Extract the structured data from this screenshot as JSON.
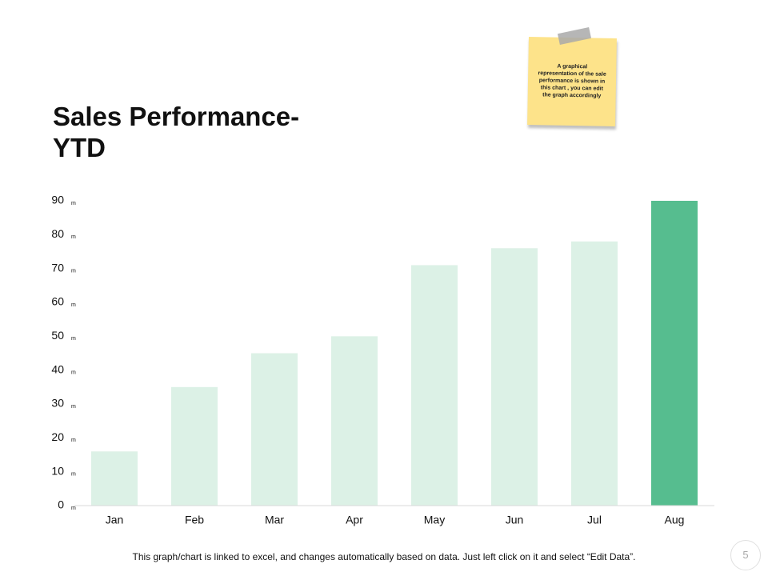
{
  "chart_data": {
    "type": "bar",
    "title": "Sales Performance- YTD",
    "note": "A graphical representation of the sale performance is shown in this chart , you can edit the graph accordingly",
    "categories": [
      "Jan",
      "Feb",
      "Mar",
      "Apr",
      "May",
      "Jun",
      "Jul",
      "Aug"
    ],
    "values": [
      16,
      35,
      45,
      50,
      71,
      76,
      78,
      90
    ],
    "colors": [
      "#dcf1e6",
      "#dcf1e6",
      "#dcf1e6",
      "#dcf1e6",
      "#dcf1e6",
      "#dcf1e6",
      "#dcf1e6",
      "#56bd8f"
    ],
    "ylim": [
      0,
      90
    ],
    "yticks": [
      0,
      10,
      20,
      30,
      40,
      50,
      60,
      70,
      80,
      90
    ],
    "tick_unit": "m",
    "grid": false,
    "footer": "This graph/chart is linked to excel, and changes automatically based on data. Just left click on it and select “Edit Data”.",
    "page_number": "5"
  }
}
